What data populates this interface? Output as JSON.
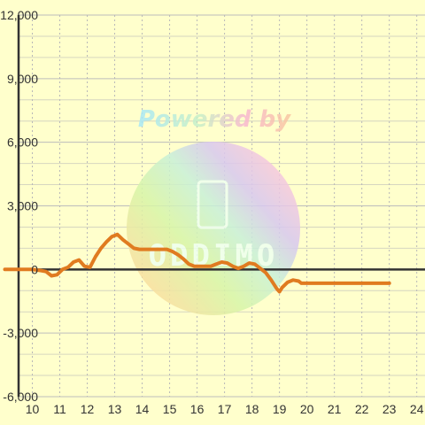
{
  "chart_data": {
    "type": "line",
    "title": "",
    "xlabel": "",
    "ylabel": "",
    "xlim": [
      9.5,
      24.3
    ],
    "ylim": [
      -6000,
      12000
    ],
    "x_ticks": [
      10,
      11,
      12,
      13,
      14,
      15,
      16,
      17,
      18,
      19,
      20,
      21,
      22,
      23,
      24
    ],
    "y_ticks": [
      -6000,
      -3000,
      0,
      3000,
      6000,
      9000,
      12000
    ],
    "y_tick_labels": [
      "-6,000",
      "-3,000",
      "0",
      "3,000",
      "6,000",
      "9,000",
      "12,000"
    ],
    "grid": true,
    "series": [
      {
        "color": "#e07b20",
        "x": [
          9.0,
          9.5,
          10.0,
          10.3,
          10.5,
          10.7,
          10.9,
          11.1,
          11.3,
          11.5,
          11.7,
          11.9,
          12.1,
          12.3,
          12.5,
          12.7,
          12.9,
          13.1,
          13.3,
          13.5,
          13.7,
          13.9,
          14.1,
          14.5,
          14.9,
          15.1,
          15.3,
          15.5,
          15.7,
          15.9,
          16.1,
          16.5,
          16.7,
          16.9,
          17.1,
          17.3,
          17.5,
          17.7,
          17.9,
          18.1,
          18.3,
          18.5,
          18.7,
          18.9,
          19.0,
          19.1,
          19.3,
          19.5,
          19.7,
          19.8,
          20.0,
          21.0,
          22.0,
          23.0
        ],
        "y": [
          0,
          0,
          0,
          -50,
          -100,
          -300,
          -250,
          0,
          100,
          350,
          450,
          150,
          100,
          600,
          1000,
          1300,
          1550,
          1650,
          1400,
          1200,
          1000,
          950,
          950,
          950,
          950,
          850,
          700,
          500,
          250,
          150,
          150,
          150,
          250,
          350,
          300,
          150,
          50,
          150,
          300,
          250,
          50,
          -150,
          -500,
          -900,
          -1050,
          -850,
          -600,
          -500,
          -550,
          -650,
          -650,
          -650,
          -650,
          -650
        ]
      }
    ],
    "watermark": {
      "text": "Powered by",
      "logo_text": "ODDIMO"
    }
  }
}
